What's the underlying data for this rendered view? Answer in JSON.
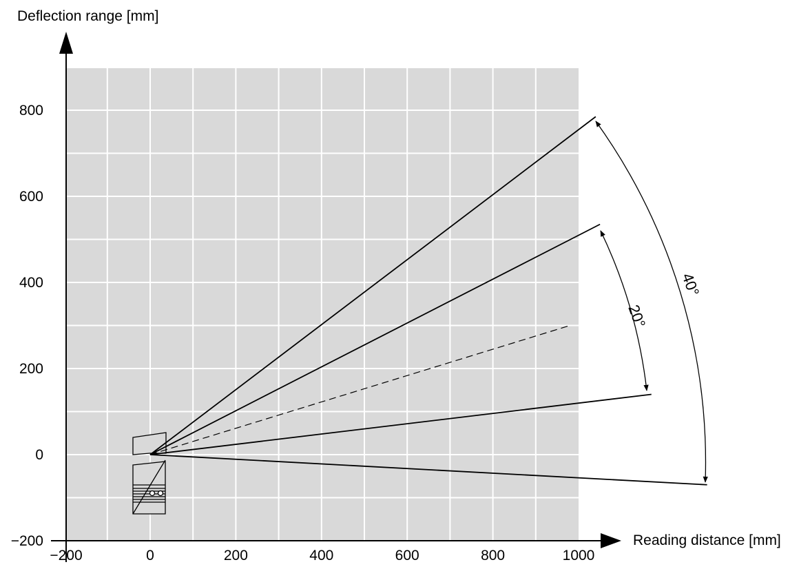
{
  "title": "",
  "x_axis": {
    "label": "Reading distance [mm]",
    "ticks": [
      -200,
      0,
      200,
      400,
      600,
      800,
      1000
    ],
    "tick_labels": [
      "−200",
      "0",
      "200",
      "400",
      "600",
      "800",
      "1000"
    ]
  },
  "y_axis": {
    "label": "Deflection range [mm]",
    "ticks": [
      -200,
      0,
      200,
      400,
      600,
      800
    ],
    "tick_labels": [
      "−200",
      "0",
      "200",
      "400",
      "600",
      "800"
    ]
  },
  "grid": {
    "shown": true,
    "color": "#d9d9d9",
    "line_color": "#ffffff",
    "minor_step": 100
  },
  "angles": [
    {
      "label": "20°",
      "degrees": 20
    },
    {
      "label": "40°",
      "degrees": 40
    }
  ],
  "rays": [
    {
      "name": "40-deg-upper",
      "end": [
        1040,
        785
      ],
      "style": "solid"
    },
    {
      "name": "20-deg-upper",
      "end": [
        1050,
        535
      ],
      "style": "solid"
    },
    {
      "name": "center-line",
      "end": [
        980,
        300
      ],
      "style": "dashed"
    },
    {
      "name": "20-deg-lower",
      "end": [
        1170,
        140
      ],
      "style": "solid"
    },
    {
      "name": "40-deg-lower",
      "end": [
        1300,
        -70
      ],
      "style": "solid"
    }
  ],
  "origin": [
    0,
    0
  ]
}
